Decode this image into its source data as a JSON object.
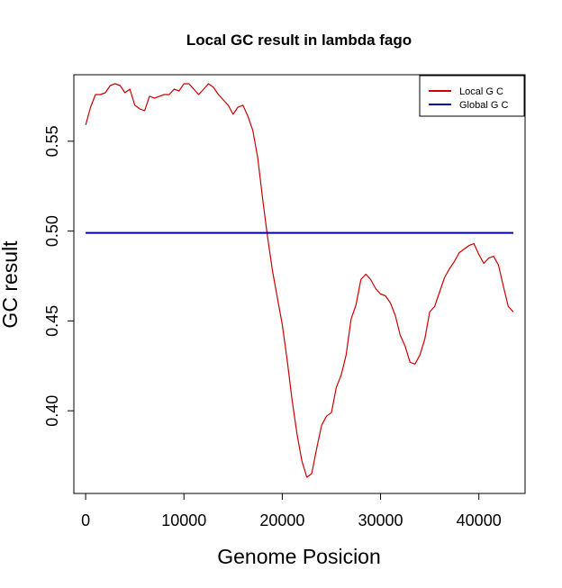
{
  "chart_data": {
    "type": "line",
    "title": "Local GC result in lambda fago",
    "xlabel": "Genome Posicion",
    "ylabel": "GC result",
    "xlim": [
      -1200,
      44700
    ],
    "ylim": [
      0.354,
      0.587
    ],
    "x_ticks": [
      0,
      10000,
      20000,
      30000,
      40000
    ],
    "x_tick_labels": [
      "0",
      "10000",
      "20000",
      "30000",
      "40000"
    ],
    "y_ticks": [
      0.4,
      0.45,
      0.5,
      0.55
    ],
    "y_tick_labels": [
      "0.40",
      "0.45",
      "0.50",
      "0.55"
    ],
    "grid": false,
    "legend_position": "top-right",
    "series": [
      {
        "name": "Local G C",
        "color": "#cc0000",
        "x": [
          0,
          500,
          1000,
          1500,
          2000,
          2500,
          3000,
          3500,
          4000,
          4500,
          5000,
          5500,
          6000,
          6500,
          7000,
          7500,
          8000,
          8500,
          9000,
          9500,
          10000,
          10500,
          11000,
          11500,
          12000,
          12500,
          13000,
          13500,
          14000,
          14500,
          15000,
          15500,
          16000,
          16500,
          17000,
          17500,
          18000,
          18500,
          19000,
          19500,
          20000,
          20500,
          21000,
          21500,
          22000,
          22500,
          23000,
          23500,
          24000,
          24500,
          25000,
          25500,
          26000,
          26500,
          27000,
          27500,
          28000,
          28500,
          29000,
          29500,
          30000,
          30500,
          31000,
          31500,
          32000,
          32500,
          33000,
          33500,
          34000,
          34500,
          35000,
          35500,
          36000,
          36500,
          37000,
          37500,
          38000,
          38500,
          39000,
          39500,
          40000,
          40500,
          41000,
          41500,
          42000,
          42500,
          43000,
          43500
        ],
        "values": [
          0.559,
          0.569,
          0.576,
          0.576,
          0.577,
          0.581,
          0.582,
          0.581,
          0.577,
          0.579,
          0.57,
          0.568,
          0.567,
          0.575,
          0.574,
          0.575,
          0.576,
          0.576,
          0.579,
          0.578,
          0.582,
          0.582,
          0.579,
          0.576,
          0.579,
          0.582,
          0.58,
          0.576,
          0.573,
          0.57,
          0.565,
          0.569,
          0.57,
          0.564,
          0.556,
          0.541,
          0.518,
          0.497,
          0.478,
          0.463,
          0.448,
          0.428,
          0.406,
          0.387,
          0.372,
          0.363,
          0.365,
          0.379,
          0.392,
          0.397,
          0.399,
          0.413,
          0.42,
          0.431,
          0.451,
          0.459,
          0.473,
          0.476,
          0.473,
          0.468,
          0.465,
          0.464,
          0.46,
          0.453,
          0.442,
          0.436,
          0.427,
          0.426,
          0.431,
          0.44,
          0.455,
          0.458,
          0.466,
          0.474,
          0.479,
          0.483,
          0.488,
          0.49,
          0.492,
          0.493,
          0.487,
          0.482,
          0.485,
          0.486,
          0.481,
          0.469,
          0.458,
          0.455
        ]
      },
      {
        "name": "Global G C",
        "color": "#0000aa",
        "x": [
          0,
          43500
        ],
        "values": [
          0.499,
          0.499
        ]
      }
    ]
  }
}
